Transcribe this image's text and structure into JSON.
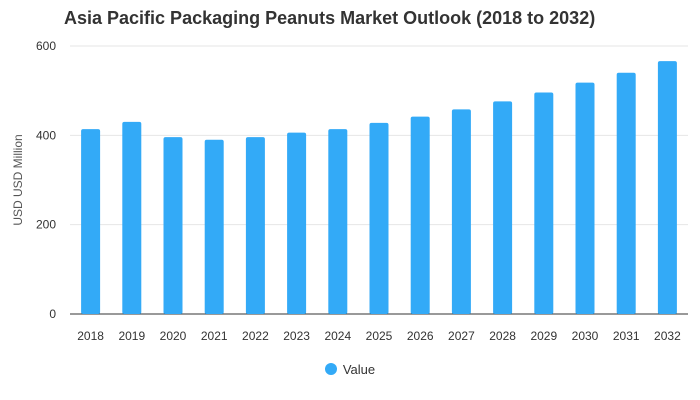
{
  "chart_data": {
    "type": "bar",
    "title": "Asia Pacific Packaging Peanuts Market Outlook (2018 to 2032)",
    "ylabel": "USD USD Million",
    "xlabel": "",
    "categories": [
      "2018",
      "2019",
      "2020",
      "2021",
      "2022",
      "2023",
      "2024",
      "2025",
      "2026",
      "2027",
      "2028",
      "2029",
      "2030",
      "2031",
      "2032"
    ],
    "series": [
      {
        "name": "Value",
        "values": [
          414,
          430,
          396,
          390,
          396,
          406,
          414,
          428,
          442,
          458,
          476,
          496,
          518,
          540,
          566
        ]
      }
    ],
    "ylim": [
      0,
      600
    ],
    "yticks": [
      0,
      200,
      400,
      600
    ],
    "grid": true,
    "legend": "bottom-center",
    "colors": {
      "bar": "#33aaf7",
      "grid": "#e6e6e6",
      "axis": "#333333"
    }
  }
}
